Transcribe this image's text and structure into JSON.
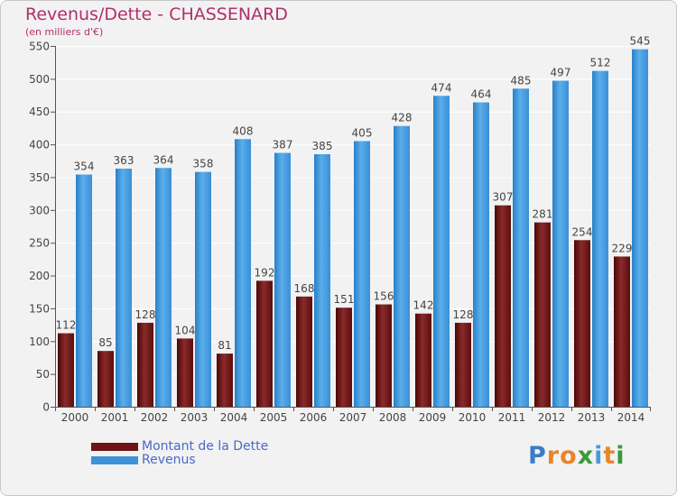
{
  "header": {
    "title": "Revenus/Dette - CHASSENARD",
    "subtitle": "(en milliers d'€)"
  },
  "colors": {
    "dette": "#6e1416",
    "revenus": "#3d92d8",
    "title": "#b0306a",
    "legend_text": "#4a68c8"
  },
  "legend": {
    "items": [
      {
        "label": "Montant de la Dette",
        "color": "#6e1416"
      },
      {
        "label": "Revenus",
        "color": "#3d92d8"
      }
    ]
  },
  "logo": {
    "text": "Proxiti"
  },
  "chart_data": {
    "type": "bar",
    "categories": [
      "2000",
      "2001",
      "2002",
      "2003",
      "2004",
      "2005",
      "2006",
      "2007",
      "2008",
      "2009",
      "2010",
      "2011",
      "2012",
      "2013",
      "2014"
    ],
    "series": [
      {
        "name": "Montant de la Dette",
        "color": "#6e1416",
        "values": [
          112,
          85,
          128,
          104,
          81,
          192,
          168,
          151,
          156,
          142,
          128,
          307,
          281,
          254,
          229
        ]
      },
      {
        "name": "Revenus",
        "color": "#3d92d8",
        "values": [
          354,
          363,
          364,
          358,
          408,
          387,
          385,
          405,
          428,
          474,
          464,
          485,
          497,
          512,
          545
        ]
      }
    ],
    "title": "Revenus/Dette - CHASSENARD",
    "subtitle": "(en milliers d'€)",
    "xlabel": "",
    "ylabel": "",
    "ylim": [
      0,
      550
    ],
    "yticks": [
      0,
      50,
      100,
      150,
      200,
      250,
      300,
      350,
      400,
      450,
      500,
      550
    ],
    "grid": true,
    "legend": "bottom-left"
  }
}
